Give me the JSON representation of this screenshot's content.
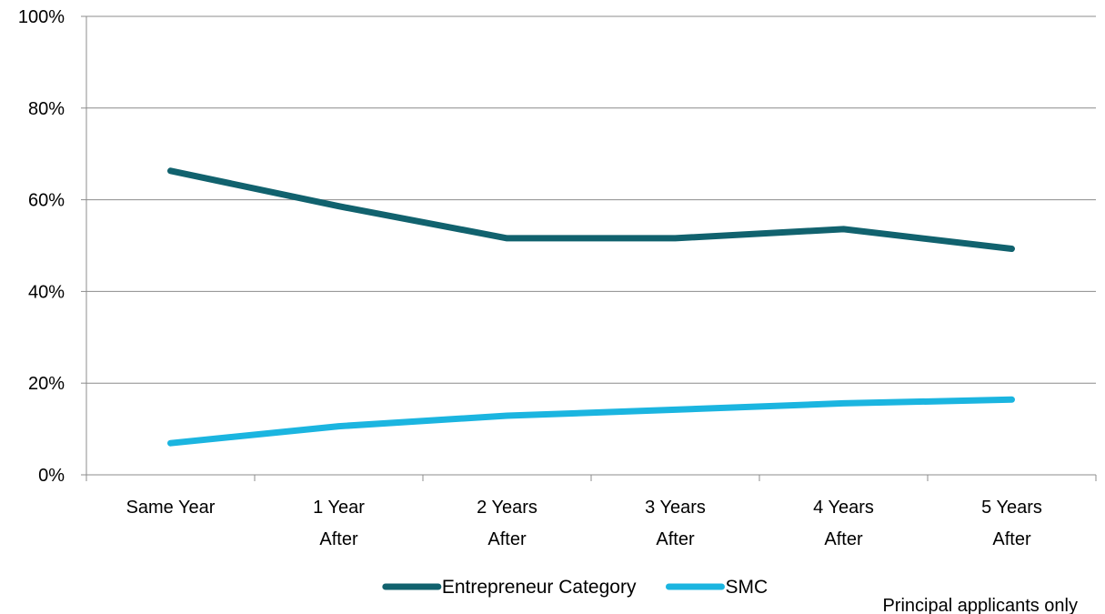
{
  "chart_data": {
    "type": "line",
    "categories": [
      [
        "Same Year"
      ],
      [
        "1 Year",
        "After"
      ],
      [
        "2 Years",
        "After"
      ],
      [
        "3 Years",
        "After"
      ],
      [
        "4 Years",
        "After"
      ],
      [
        "5 Years",
        "After"
      ]
    ],
    "series": [
      {
        "name": "Entrepreneur Category",
        "color": "#11626e",
        "values": [
          66.3,
          58.6,
          51.6,
          51.6,
          53.6,
          49.3
        ]
      },
      {
        "name": "SMC",
        "color": "#1bb5e0",
        "values": [
          6.9,
          10.6,
          12.9,
          14.2,
          15.6,
          16.4
        ]
      }
    ],
    "y_ticks": [
      "0%",
      "20%",
      "40%",
      "60%",
      "80%",
      "100%"
    ],
    "ylim": [
      0,
      100
    ],
    "grid": true,
    "legend_position": "bottom",
    "annotation": "Principal applicants only"
  }
}
